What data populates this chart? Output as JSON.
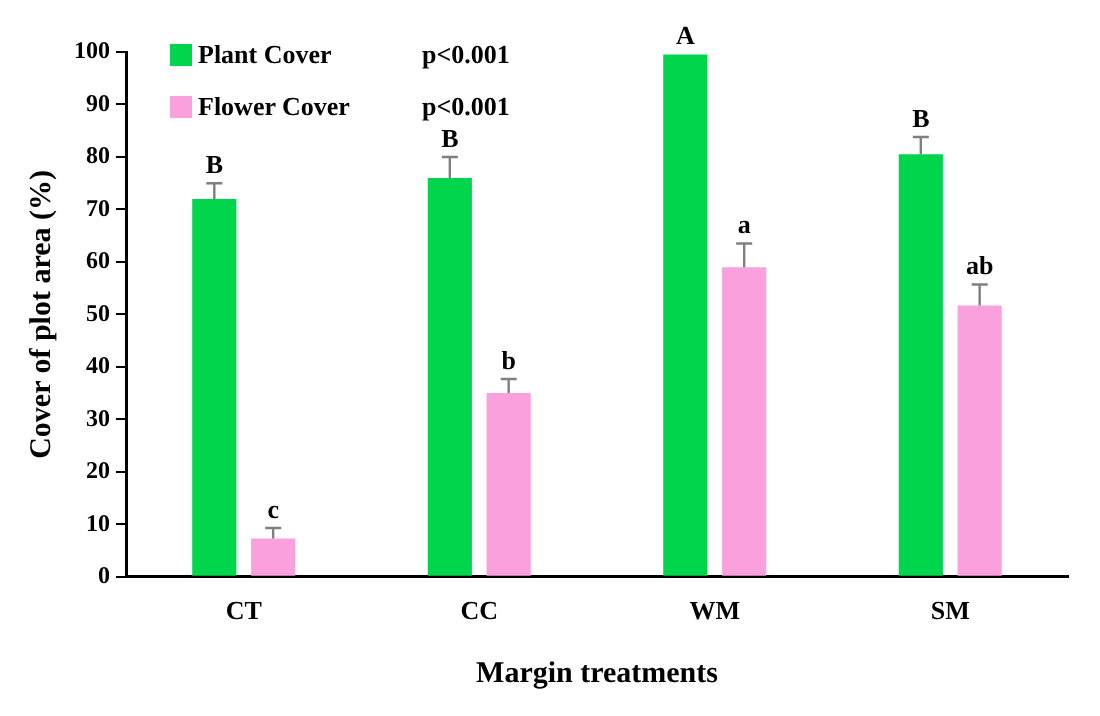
{
  "chart_data": {
    "type": "bar",
    "xlabel": "Margin treatments",
    "ylabel": "Cover of plot area (%)",
    "categories": [
      "CT",
      "CC",
      "WM",
      "SM"
    ],
    "series": [
      {
        "name": "Plant Cover",
        "color": "#00d54b",
        "values": [
          72,
          76,
          99.5,
          80.5
        ],
        "errors": [
          3,
          4,
          null,
          3.3
        ],
        "value_labels": [
          "B",
          "B",
          "A",
          "B"
        ]
      },
      {
        "name": "Flower Cover",
        "color": "#f9a0dd",
        "values": [
          7.3,
          35,
          59,
          51.7
        ],
        "errors": [
          2,
          2.7,
          4.5,
          4
        ],
        "value_labels": [
          "c",
          "b",
          "a",
          "ab"
        ]
      }
    ],
    "ylim": [
      0,
      100
    ],
    "yticks": [
      0,
      10,
      20,
      30,
      40,
      50,
      60,
      70,
      80,
      90,
      100
    ],
    "annotations": [
      "p<0.001",
      "p<0.001"
    ],
    "grid": false,
    "legend": "top left"
  }
}
